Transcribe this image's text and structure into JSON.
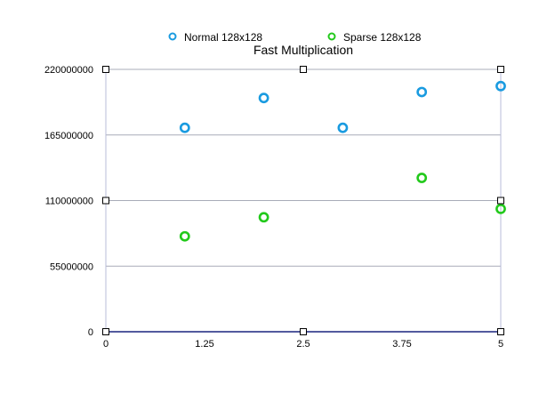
{
  "chart_data": {
    "type": "scatter",
    "title": "Fast Multiplication",
    "xlabel": "",
    "ylabel": "",
    "xlim": [
      0,
      5
    ],
    "ylim": [
      0,
      220000000
    ],
    "x_ticks": [
      "0",
      "1.25",
      "2.5",
      "3.75",
      "5"
    ],
    "y_ticks": [
      "0",
      "55000000",
      "110000000",
      "165000000",
      "220000000"
    ],
    "grid": "horizontal",
    "legend_position": "top-center",
    "series": [
      {
        "name": "Normal 128x128",
        "color": "#1a9be0",
        "x": [
          1,
          2,
          3,
          4,
          5
        ],
        "y": [
          171000000,
          196000000,
          171000000,
          201000000,
          206000000
        ]
      },
      {
        "name": "Sparse 128x128",
        "color": "#22c91b",
        "x": [
          1,
          2,
          4,
          5
        ],
        "y": [
          80000000,
          96000000,
          129000000,
          103000000
        ]
      }
    ]
  }
}
